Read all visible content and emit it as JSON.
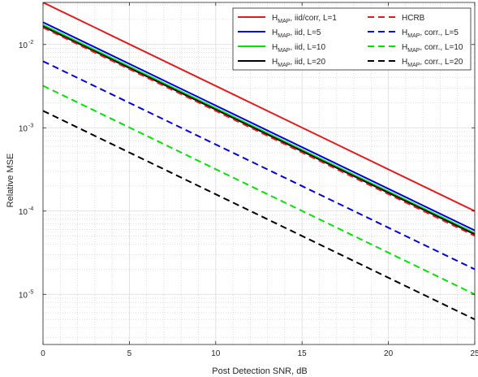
{
  "chart_data": {
    "type": "line",
    "xlabel": "Post Detection SNR, dB",
    "ylabel": "Relative MSE",
    "xlim": [
      0,
      25
    ],
    "ylim": [
      2.5e-06,
      0.032
    ],
    "yscale": "log",
    "grid": "on (major solid, minor dotted)",
    "legend_position": "top-right",
    "xticks": [
      "0",
      "5",
      "10",
      "15",
      "20",
      "25"
    ],
    "yticks": [
      {
        "value": 1e-05,
        "mantissa": "10",
        "exponent": "-5"
      },
      {
        "value": 0.0001,
        "mantissa": "10",
        "exponent": "-4"
      },
      {
        "value": 0.001,
        "mantissa": "10",
        "exponent": "-3"
      },
      {
        "value": 0.01,
        "mantissa": "10",
        "exponent": "-2"
      }
    ],
    "x": [
      0,
      25
    ],
    "series": [
      {
        "name_main": "H",
        "name_sub": "MAP",
        "name_rest": ", iid/corr, L=1",
        "color": "#e41a1c",
        "dash": "solid",
        "values": [
          0.032,
          0.0001
        ]
      },
      {
        "name_main": "H",
        "name_sub": "MAP",
        "name_rest": ", iid, L=5",
        "color": "#0000e6",
        "dash": "solid",
        "values": [
          0.0185,
          5.85e-05
        ]
      },
      {
        "name_main": "H",
        "name_sub": "MAP",
        "name_rest": ", iid, L=10",
        "color": "#00e600",
        "dash": "solid",
        "values": [
          0.0172,
          5.45e-05
        ]
      },
      {
        "name_main": "H",
        "name_sub": "MAP",
        "name_rest": ", iid, L=20",
        "color": "#000000",
        "dash": "solid",
        "values": [
          0.0165,
          5.25e-05
        ]
      },
      {
        "name_main": "HCRB",
        "name_sub": "",
        "name_rest": "",
        "color": "#e41a1c",
        "dash": "dashed",
        "values": [
          0.016,
          5.05e-05
        ]
      },
      {
        "name_main": "H",
        "name_sub": "MAP",
        "name_rest": ", corr., L=5",
        "color": "#0000e6",
        "dash": "dashed",
        "values": [
          0.0063,
          2e-05
        ]
      },
      {
        "name_main": "H",
        "name_sub": "MAP",
        "name_rest": ", corr., L=10",
        "color": "#00e600",
        "dash": "dashed",
        "values": [
          0.0032,
          1e-05
        ]
      },
      {
        "name_main": "H",
        "name_sub": "MAP",
        "name_rest": ", corr., L=20",
        "color": "#000000",
        "dash": "dashed",
        "values": [
          0.0016,
          5e-06
        ]
      }
    ]
  }
}
